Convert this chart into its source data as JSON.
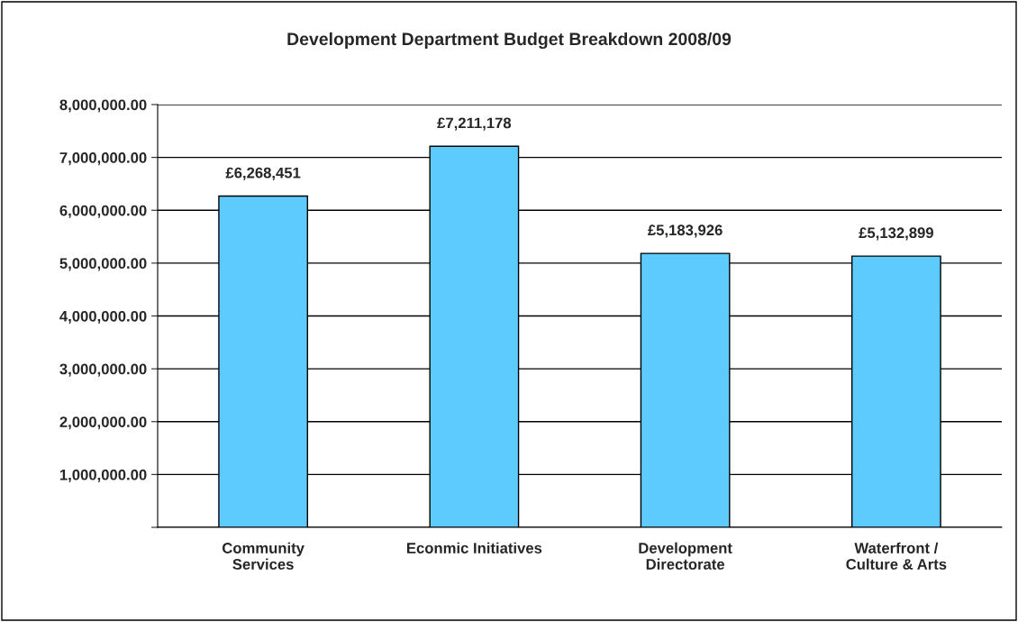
{
  "chart_data": {
    "type": "bar",
    "title": "Development Department Budget Breakdown 2008/09",
    "categories": [
      "Community\nServices",
      "Econmic Initiatives",
      "Development\nDirectorate",
      "Waterfront /\nCulture & Arts"
    ],
    "values": [
      6268451,
      7211178,
      5183926,
      5132899
    ],
    "value_labels": [
      "£6,268,451",
      "£7,211,178",
      "£5,183,926",
      "£5,132,899"
    ],
    "color": "#5ecbff",
    "ylim": [
      0,
      8000000
    ],
    "yticks": [
      {
        "value": 0,
        "label": null
      },
      {
        "value": 1000000,
        "label": "1,000,000.00"
      },
      {
        "value": 2000000,
        "label": "2,000,000.00"
      },
      {
        "value": 3000000,
        "label": "3,000,000.00"
      },
      {
        "value": 4000000,
        "label": "4,000,000.00"
      },
      {
        "value": 5000000,
        "label": "5,000,000.00"
      },
      {
        "value": 6000000,
        "label": "6,000,000.00"
      },
      {
        "value": 7000000,
        "label": "7,000,000.00"
      },
      {
        "value": 8000000,
        "label": "8,000,000.00"
      }
    ],
    "grid": "y"
  }
}
